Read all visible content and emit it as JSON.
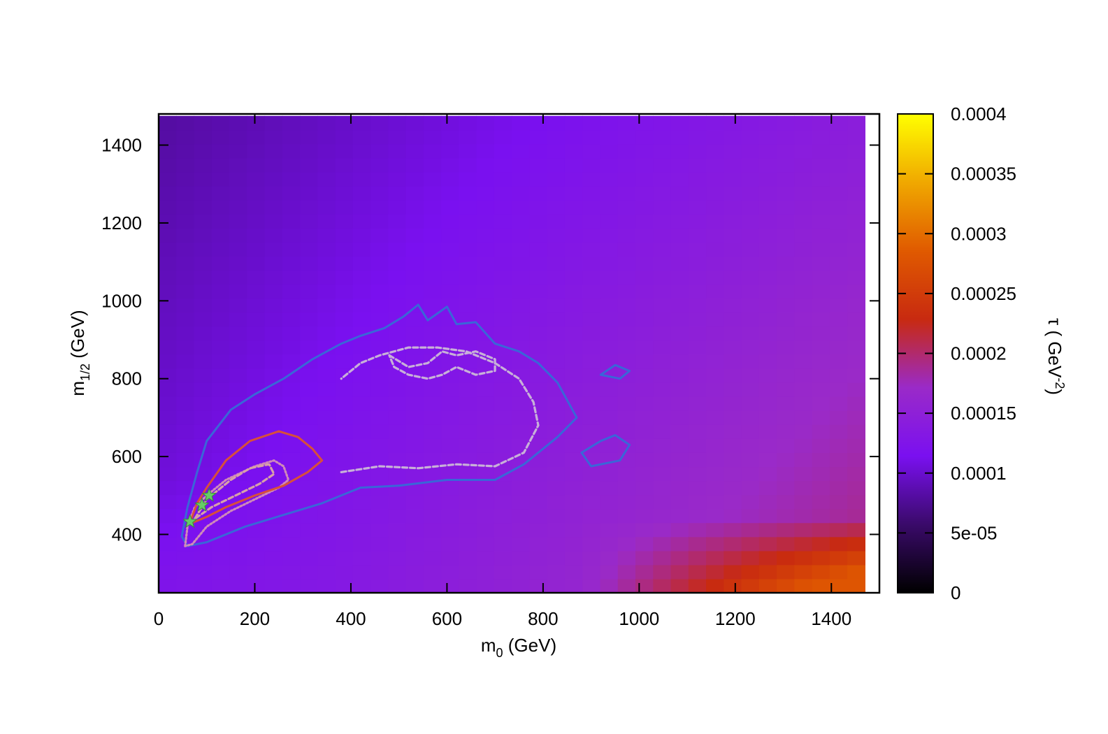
{
  "chart_data": {
    "type": "heatmap",
    "xlabel": {
      "main": "m",
      "sub": "0",
      "unit": " (GeV)"
    },
    "ylabel": {
      "main": "m",
      "sub": "1/2",
      "unit": " (GeV)"
    },
    "colorbar_label": {
      "prefix": "τ ( GeV",
      "sup": "-2",
      "suffix": ")"
    },
    "xlim": [
      0,
      1500
    ],
    "ylim": [
      250,
      1480
    ],
    "x_ticks": [
      "0",
      "200",
      "400",
      "600",
      "800",
      "1000",
      "1200",
      "1400"
    ],
    "y_ticks": [
      "400",
      "600",
      "800",
      "1000",
      "1200",
      "1400"
    ],
    "colorbar_range": [
      0,
      0.0004
    ],
    "colorbar_ticks": [
      "0",
      "5e-05",
      "0.0001",
      "0.00015",
      "0.0002",
      "0.00025",
      "0.0003",
      "0.00035",
      "0.0004"
    ],
    "colormap": [
      "#000000",
      "#3a0a6a",
      "#7a10f0",
      "#9a2ac8",
      "#c82a10",
      "#e05a00",
      "#f0a800",
      "#ffff00"
    ],
    "heatmap_extent": {
      "x": [
        0,
        1470
      ],
      "y": [
        250,
        1475
      ]
    },
    "contours": [
      {
        "color": "#3a66d8",
        "style": "solid",
        "points": [
          [
            48,
            395
          ],
          [
            60,
            470
          ],
          [
            80,
            560
          ],
          [
            100,
            640
          ],
          [
            150,
            720
          ],
          [
            200,
            760
          ],
          [
            260,
            800
          ],
          [
            320,
            850
          ],
          [
            380,
            890
          ],
          [
            420,
            910
          ],
          [
            470,
            930
          ],
          [
            510,
            960
          ],
          [
            540,
            990
          ],
          [
            560,
            950
          ],
          [
            600,
            985
          ],
          [
            620,
            940
          ],
          [
            660,
            945
          ],
          [
            700,
            890
          ],
          [
            750,
            870
          ],
          [
            790,
            840
          ],
          [
            830,
            790
          ],
          [
            870,
            700
          ],
          [
            830,
            650
          ],
          [
            800,
            620
          ],
          [
            760,
            580
          ],
          [
            700,
            540
          ],
          [
            600,
            540
          ],
          [
            500,
            525
          ],
          [
            420,
            520
          ],
          [
            340,
            480
          ],
          [
            260,
            450
          ],
          [
            180,
            420
          ],
          [
            100,
            380
          ],
          [
            60,
            370
          ],
          [
            48,
            395
          ]
        ]
      },
      {
        "color": "#3a66d8",
        "style": "solid",
        "points": [
          [
            920,
            810
          ],
          [
            950,
            835
          ],
          [
            980,
            820
          ],
          [
            960,
            800
          ],
          [
            920,
            810
          ]
        ]
      },
      {
        "color": "#3a66d8",
        "style": "solid",
        "points": [
          [
            920,
            640
          ],
          [
            950,
            655
          ],
          [
            980,
            630
          ],
          [
            960,
            590
          ],
          [
            900,
            575
          ],
          [
            880,
            610
          ],
          [
            920,
            640
          ]
        ]
      },
      {
        "color": "#c8b0d8",
        "style": "dashed",
        "points": [
          [
            380,
            560
          ],
          [
            460,
            575
          ],
          [
            540,
            570
          ],
          [
            620,
            580
          ],
          [
            700,
            575
          ],
          [
            760,
            610
          ],
          [
            790,
            680
          ],
          [
            780,
            740
          ],
          [
            750,
            800
          ],
          [
            700,
            840
          ],
          [
            640,
            870
          ],
          [
            580,
            880
          ],
          [
            520,
            880
          ],
          [
            460,
            860
          ],
          [
            420,
            840
          ],
          [
            380,
            800
          ]
        ]
      },
      {
        "color": "#c8b0d8",
        "style": "dashed",
        "points": [
          [
            480,
            860
          ],
          [
            520,
            830
          ],
          [
            560,
            840
          ],
          [
            590,
            870
          ],
          [
            620,
            860
          ],
          [
            660,
            870
          ],
          [
            700,
            850
          ],
          [
            700,
            820
          ],
          [
            660,
            810
          ],
          [
            620,
            830
          ],
          [
            590,
            810
          ],
          [
            560,
            800
          ],
          [
            520,
            810
          ],
          [
            490,
            830
          ],
          [
            480,
            860
          ]
        ]
      },
      {
        "color": "#d08ab8",
        "style": "dotted",
        "points": [
          [
            55,
            370
          ],
          [
            60,
            420
          ],
          [
            75,
            470
          ],
          [
            100,
            500
          ],
          [
            140,
            540
          ],
          [
            200,
            575
          ],
          [
            240,
            590
          ],
          [
            260,
            575
          ],
          [
            270,
            540
          ],
          [
            250,
            520
          ],
          [
            200,
            490
          ],
          [
            150,
            460
          ],
          [
            100,
            420
          ],
          [
            70,
            375
          ],
          [
            55,
            370
          ]
        ]
      },
      {
        "color": "#d8503a",
        "style": "solid",
        "points": [
          [
            65,
            430
          ],
          [
            80,
            480
          ],
          [
            100,
            520
          ],
          [
            140,
            590
          ],
          [
            190,
            640
          ],
          [
            250,
            665
          ],
          [
            290,
            650
          ],
          [
            320,
            620
          ],
          [
            340,
            590
          ],
          [
            310,
            560
          ],
          [
            260,
            525
          ],
          [
            200,
            500
          ],
          [
            140,
            470
          ],
          [
            100,
            445
          ],
          [
            70,
            430
          ],
          [
            65,
            430
          ]
        ]
      },
      {
        "color": "#d8a0a8",
        "style": "dashed",
        "points": [
          [
            75,
            440
          ],
          [
            100,
            490
          ],
          [
            150,
            540
          ],
          [
            190,
            570
          ],
          [
            230,
            580
          ],
          [
            240,
            555
          ],
          [
            210,
            530
          ],
          [
            160,
            500
          ],
          [
            110,
            470
          ],
          [
            75,
            440
          ]
        ]
      }
    ],
    "best_fit_points": [
      {
        "x": 65,
        "y": 433,
        "color": "#66cc66"
      },
      {
        "x": 90,
        "y": 475,
        "color": "#66cc66"
      },
      {
        "x": 105,
        "y": 500,
        "color": "#66cc66"
      }
    ]
  }
}
